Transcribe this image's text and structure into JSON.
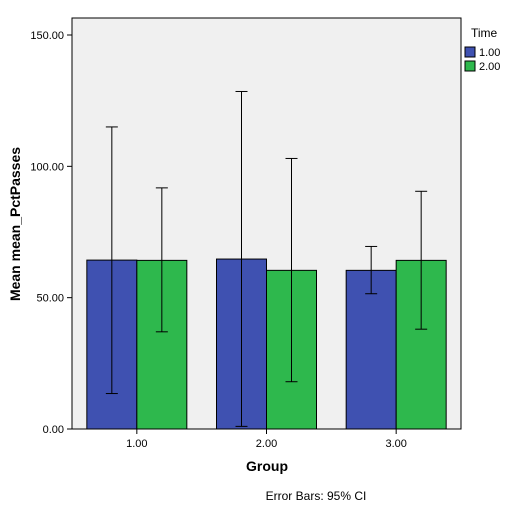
{
  "chart_data": {
    "type": "bar",
    "categories": [
      "1.00",
      "2.00",
      "3.00"
    ],
    "series": [
      {
        "name": "1.00",
        "color": "#3f51b1",
        "values": [
          64.3,
          64.7,
          60.4
        ],
        "ci_low": [
          13.5,
          1.0,
          51.5
        ],
        "ci_high": [
          115.0,
          128.5,
          69.5
        ]
      },
      {
        "name": "2.00",
        "color": "#2eb84d",
        "values": [
          64.2,
          60.4,
          64.2
        ],
        "ci_low": [
          37.0,
          18.0,
          38.0
        ],
        "ci_high": [
          91.8,
          103.0,
          90.5
        ]
      }
    ],
    "xlabel": "Group",
    "ylabel": "Mean mean_PctPasses",
    "ylim": [
      0,
      150
    ],
    "yticks": [
      "0.00",
      "50.00",
      "100.00",
      "150.00"
    ],
    "ytick_values": [
      0,
      50,
      100,
      150
    ],
    "legend_title": "Time",
    "legend_position": "top-right",
    "plot_background": "#f0f0f0",
    "note": "Error Bars: 95% CI"
  }
}
